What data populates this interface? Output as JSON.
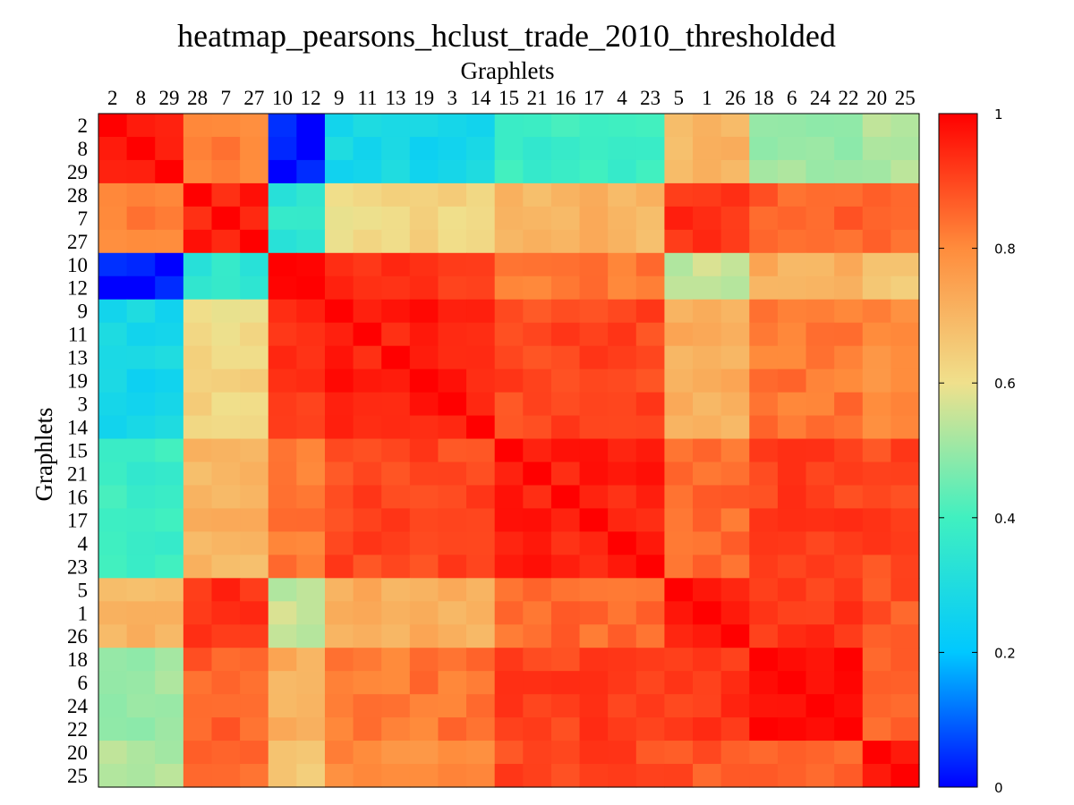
{
  "chart_data": {
    "type": "heatmap",
    "title": "heatmap_pearsons_hclust_trade_2010_thresholded",
    "xlabel": "Graphlets",
    "ylabel": "Graphlets",
    "labels": [
      "2",
      "8",
      "29",
      "28",
      "7",
      "27",
      "10",
      "12",
      "9",
      "11",
      "13",
      "19",
      "3",
      "14",
      "15",
      "21",
      "16",
      "17",
      "4",
      "23",
      "5",
      "1",
      "26",
      "18",
      "6",
      "24",
      "22",
      "20",
      "25"
    ],
    "groups": [
      [
        0,
        1,
        2
      ],
      [
        3,
        4,
        5
      ],
      [
        6,
        7
      ],
      [
        8,
        9,
        10,
        11,
        12,
        13
      ],
      [
        14,
        15,
        16,
        17,
        18,
        19
      ],
      [
        20,
        21,
        22
      ],
      [
        23,
        24,
        25,
        26
      ],
      [
        27,
        28
      ]
    ],
    "block_values": [
      [
        0.98,
        0.82,
        0.02,
        0.27,
        0.38,
        0.7,
        0.5,
        0.52
      ],
      [
        0.82,
        0.96,
        0.35,
        0.62,
        0.7,
        0.94,
        0.86,
        0.85
      ],
      [
        0.02,
        0.35,
        0.98,
        0.93,
        0.83,
        0.55,
        0.72,
        0.66
      ],
      [
        0.27,
        0.62,
        0.93,
        0.96,
        0.9,
        0.72,
        0.83,
        0.8
      ],
      [
        0.38,
        0.7,
        0.83,
        0.9,
        0.95,
        0.85,
        0.91,
        0.9
      ],
      [
        0.7,
        0.94,
        0.55,
        0.72,
        0.85,
        0.96,
        0.92,
        0.88
      ],
      [
        0.5,
        0.86,
        0.72,
        0.83,
        0.91,
        0.92,
        0.97,
        0.86
      ],
      [
        0.52,
        0.85,
        0.66,
        0.8,
        0.9,
        0.88,
        0.86,
        0.96
      ]
    ],
    "colorbar": {
      "min": 0,
      "max": 1,
      "ticks": [
        "1",
        "0.8",
        "0.6",
        "0.4",
        "0.2",
        "0"
      ]
    },
    "colormap": [
      "#0000ff",
      "#00c8ff",
      "#40f0c0",
      "#f0e08c",
      "#ff8c3c",
      "#ff0000"
    ]
  }
}
